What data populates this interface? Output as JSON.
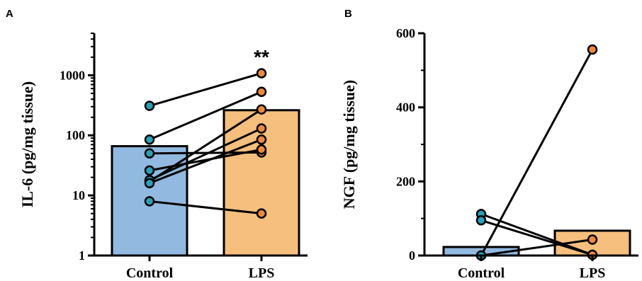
{
  "chart_data": [
    {
      "panel": "A",
      "type": "bar",
      "categories": [
        "Control",
        "LPS"
      ],
      "values": [
        66,
        262
      ],
      "ylabel": "IL-6 (pg/mg tissue)",
      "yscale": "log",
      "ylim": [
        1,
        5000
      ],
      "yticks": [
        1,
        10,
        100,
        1000
      ],
      "yticklabels": [
        "1",
        "10",
        "100",
        "1000"
      ],
      "bar_colors": [
        "#92b9e0",
        "#f6bf7e"
      ],
      "point_colors": [
        "#2a9fb7",
        "#f0883a"
      ],
      "significance": "**",
      "paired": [
        [
          310,
          1080
        ],
        [
          85,
          530
        ],
        [
          50,
          52
        ],
        [
          26,
          58
        ],
        [
          17,
          270
        ],
        [
          18,
          130
        ],
        [
          16,
          85
        ],
        [
          8,
          5
        ]
      ]
    },
    {
      "panel": "B",
      "type": "bar",
      "categories": [
        "Control",
        "LPS"
      ],
      "values": [
        23,
        67
      ],
      "ylabel": "NGF (pg/mg tissue)",
      "yscale": "linear",
      "ylim": [
        0,
        600
      ],
      "yticks": [
        0,
        200,
        400,
        600
      ],
      "yticklabels": [
        "0",
        "200",
        "400",
        "600"
      ],
      "bar_colors": [
        "#92b9e0",
        "#f6bf7e"
      ],
      "point_colors": [
        "#2a9fb7",
        "#f0883a"
      ],
      "paired": [
        [
          112,
          2
        ],
        [
          95,
          2
        ],
        [
          0,
          556
        ],
        [
          0,
          43
        ]
      ]
    }
  ]
}
